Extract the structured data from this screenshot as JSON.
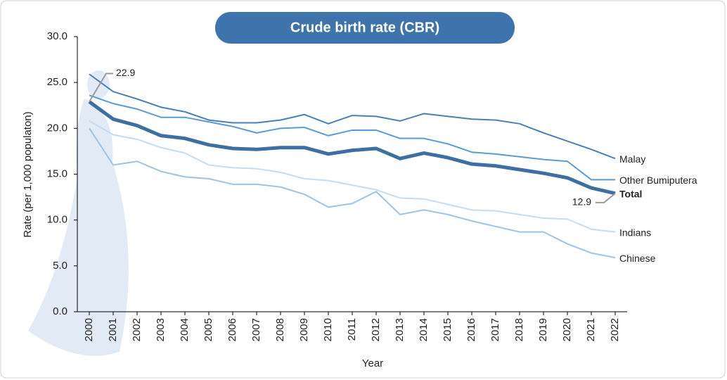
{
  "chart_data": {
    "type": "line",
    "title": "Crude birth rate (CBR)",
    "x_label": "Year",
    "y_label": "Rate (per 1,000 populaton)",
    "categories": [
      "2000",
      "2001",
      "2002",
      "2003",
      "2004",
      "2005",
      "2006",
      "2007",
      "2008",
      "2009",
      "2010",
      "2011",
      "2012",
      "2013",
      "2014",
      "2015",
      "2016",
      "2017",
      "2018",
      "2019",
      "2020",
      "2021",
      "2022"
    ],
    "ylim": [
      0,
      30
    ],
    "yticks": [
      {
        "value": 0,
        "label": "0.0"
      },
      {
        "value": 5,
        "label": "5.0"
      },
      {
        "value": 10,
        "label": "10.0"
      },
      {
        "value": 15,
        "label": "15.0"
      },
      {
        "value": 20,
        "label": "20.0"
      },
      {
        "value": 25,
        "label": "25.0"
      },
      {
        "value": 30,
        "label": "30.0"
      }
    ],
    "series": [
      {
        "name": "Malay",
        "color": "#4a80b8",
        "values": [
          25.9,
          24.0,
          23.2,
          22.3,
          21.8,
          20.9,
          20.6,
          20.6,
          20.9,
          21.5,
          20.5,
          21.4,
          21.3,
          20.8,
          21.6,
          21.3,
          21.0,
          20.9,
          20.5,
          19.5,
          18.6,
          17.7,
          16.7
        ]
      },
      {
        "name": "Other Bumiputera",
        "color": "#5b9bd5",
        "values": [
          23.6,
          22.7,
          22.1,
          21.2,
          21.2,
          20.7,
          20.2,
          19.5,
          20.0,
          20.1,
          19.2,
          19.8,
          19.8,
          18.9,
          18.9,
          18.3,
          17.4,
          17.2,
          16.9,
          16.6,
          16.4,
          14.4,
          14.4
        ]
      },
      {
        "name": "Total",
        "color": "#3e6fa3",
        "bold": true,
        "values": [
          22.9,
          21.0,
          20.3,
          19.2,
          18.9,
          18.2,
          17.8,
          17.7,
          17.9,
          17.9,
          17.2,
          17.6,
          17.8,
          16.7,
          17.3,
          16.8,
          16.1,
          15.9,
          15.5,
          15.1,
          14.6,
          13.5,
          12.9
        ],
        "value_labels": [
          "22.9",
          null,
          null,
          null,
          null,
          null,
          null,
          null,
          null,
          null,
          null,
          null,
          null,
          null,
          null,
          null,
          null,
          null,
          null,
          null,
          null,
          null,
          "12.9"
        ]
      },
      {
        "name": "Indians",
        "color": "#c5dcf0",
        "values": [
          20.8,
          19.3,
          18.8,
          17.9,
          17.3,
          16.0,
          15.7,
          15.6,
          15.2,
          14.5,
          14.3,
          13.8,
          13.3,
          12.4,
          12.3,
          11.7,
          11.1,
          11.0,
          10.6,
          10.2,
          10.1,
          9.0,
          8.7
        ]
      },
      {
        "name": "Chinese",
        "color": "#9dc3e6",
        "values": [
          20.0,
          16.0,
          16.4,
          15.3,
          14.7,
          14.5,
          13.9,
          13.9,
          13.6,
          12.8,
          11.4,
          11.8,
          13.1,
          10.6,
          11.1,
          10.6,
          9.9,
          9.3,
          8.7,
          8.7,
          7.4,
          6.4,
          5.9
        ]
      }
    ]
  }
}
